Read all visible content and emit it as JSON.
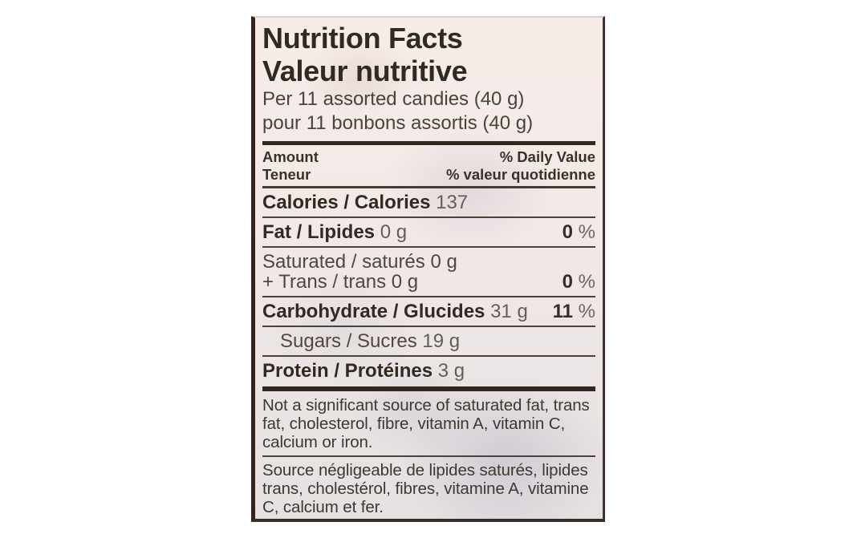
{
  "page": {
    "background_color": "#ffffff"
  },
  "label": {
    "title_en": "Nutrition Facts",
    "title_fr": "Valeur nutritive",
    "serving_en": "Per 11 assorted candies (40 g)",
    "serving_fr": "pour 11 bonbons assortis (40 g)",
    "header": {
      "amount_en": "Amount",
      "amount_fr": "Teneur",
      "daily_value_en": "% Daily Value",
      "daily_value_fr": "% valeur quotidienne"
    },
    "rows": {
      "calories": {
        "label": "Calories / Calories",
        "value": "137"
      },
      "fat": {
        "label": "Fat / Lipides",
        "value": "0 g",
        "dv_value": "0",
        "dv_unit": "%"
      },
      "saturated_trans": {
        "line1": "Saturated / saturés 0 g",
        "line2": "+ Trans / trans 0 g",
        "dv_value": "0",
        "dv_unit": "%"
      },
      "carbohydrate": {
        "label": "Carbohydrate / Glucides",
        "value": "31 g",
        "dv_value": "11",
        "dv_unit": "%"
      },
      "sugars": {
        "label": "Sugars / Sucres",
        "value": "19 g"
      },
      "protein": {
        "label": "Protein / Protéines",
        "value": "3 g"
      }
    },
    "footnote_en": "Not a significant source of saturated fat, trans fat, cholesterol, fibre, vitamin A, vitamin C, calcium or iron.",
    "footnote_fr": "Source négligeable de lipides saturés, lipides trans, cholestérol, fibres, vitamine A, vitamine C, calcium et fer.",
    "colors": {
      "ink_bold": "#322a21",
      "ink_regular_dark": "#4a433b",
      "ink_value": "#655e54",
      "rule": "#4c4238",
      "edge_dark": "#38231c",
      "label_background": "#f1e8e6"
    }
  }
}
